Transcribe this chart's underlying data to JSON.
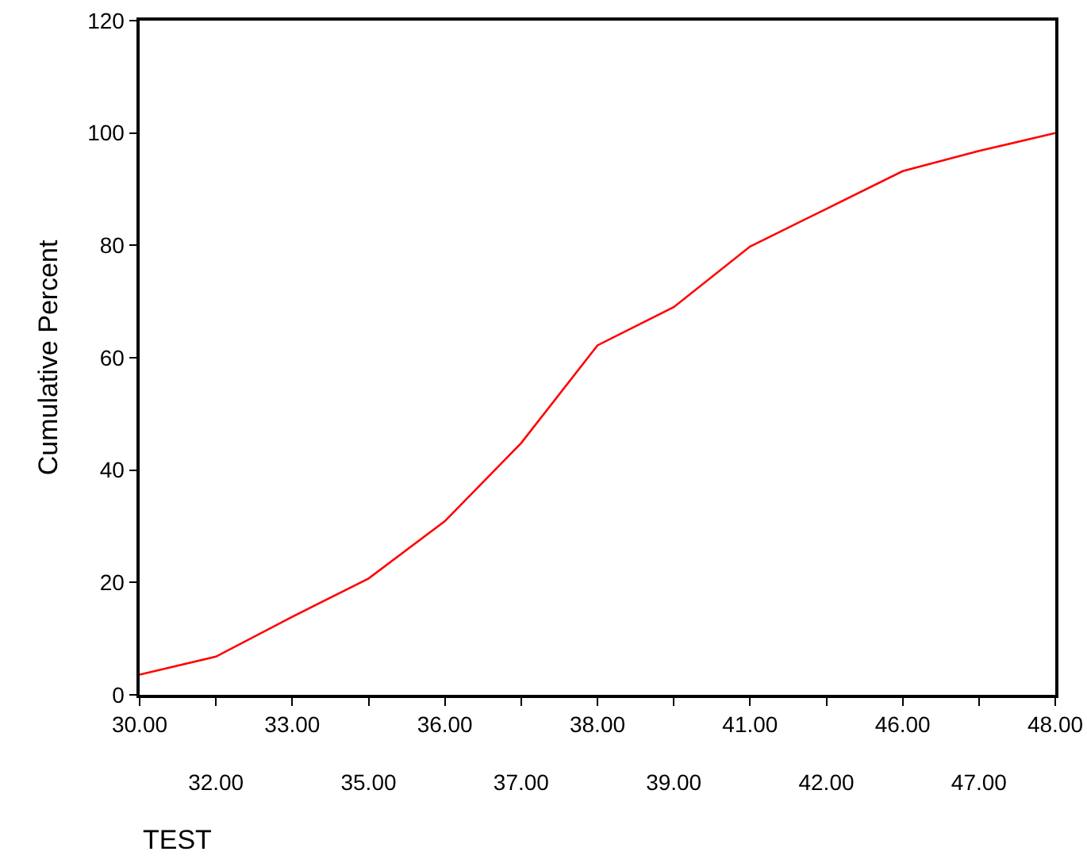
{
  "chart_data": {
    "type": "line",
    "xlabel": "TEST",
    "ylabel": "Cumulative Percent",
    "categories": [
      "30.00",
      "32.00",
      "33.00",
      "35.00",
      "36.00",
      "37.00",
      "38.00",
      "39.00",
      "41.00",
      "42.00",
      "46.00",
      "47.00",
      "48.00"
    ],
    "series": [
      {
        "color": "#ff0000",
        "values": [
          3.6,
          6.8,
          13.9,
          20.7,
          30.9,
          44.8,
          62.2,
          69.0,
          79.8,
          86.5,
          93.2,
          96.8,
          100
        ]
      }
    ],
    "ylim": [
      0,
      120
    ],
    "yticks": [
      0,
      20,
      40,
      60,
      80,
      100,
      120
    ],
    "grid": false,
    "legend": false,
    "marker": "none",
    "line_style": "solid"
  }
}
